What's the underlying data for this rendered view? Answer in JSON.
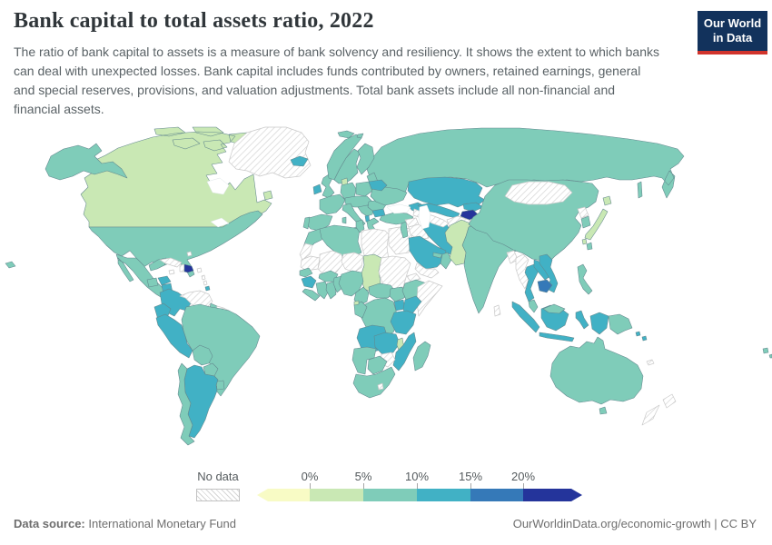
{
  "header": {
    "title": "Bank capital to total assets ratio, 2022",
    "subtitle": "The ratio of bank capital to assets is a measure of bank solvency and resiliency. It shows the extent to which banks can deal with unexpected losses. Bank capital includes funds contributed by owners, retained earnings, general and special reserves, provisions, and valuation adjustments. Total bank assets include all non-financial and financial assets.",
    "logo": {
      "line1": "Our World",
      "line2": "in Data"
    }
  },
  "colors": {
    "title_text": "#30363a",
    "subtitle_text": "#5a6266",
    "legend_text": "#555b5e",
    "footer_text": "#6e6e6e",
    "logo_bg": "#12325c",
    "logo_red": "#d1342c",
    "country_stroke": "#62878d",
    "nodata_stroke": "#c9c9c9"
  },
  "legend": {
    "no_data_label": "No data",
    "tick_labels": [
      "0%",
      "5%",
      "10%",
      "15%",
      "20%"
    ],
    "bands": [
      {
        "label": "<0%",
        "color": "#f8fbc5"
      },
      {
        "label": "0-5%",
        "color": "#c9e8b4"
      },
      {
        "label": "5-10%",
        "color": "#7fccb9"
      },
      {
        "label": "10-15%",
        "color": "#41b1c5"
      },
      {
        "label": "15-20%",
        "color": "#3579b8"
      },
      {
        "label": "20%+",
        "color": "#24349b"
      }
    ]
  },
  "footer": {
    "source_label": "Data source:",
    "source_text": " International Monetary Fund",
    "right_text": "OurWorldinData.org/economic-growth | CC BY"
  },
  "chart_data": {
    "type": "choropleth",
    "title": "Bank capital to total assets ratio",
    "year": "2022",
    "unit": "%",
    "band_colors": {
      "no-data": "hatch",
      "0-5": "#c9e8b4",
      "5-10": "#7fccb9",
      "10-15": "#41b1c5",
      "15-20": "#3579b8",
      "20+": "#24349b"
    },
    "countries": [
      {
        "id": "russia",
        "name": "Russia",
        "band": "5-10"
      },
      {
        "id": "canada",
        "name": "Canada",
        "band": "0-5"
      },
      {
        "id": "usa",
        "name": "United States",
        "band": "5-10"
      },
      {
        "id": "greenland",
        "name": "Greenland",
        "band": "no-data"
      },
      {
        "id": "mexico",
        "name": "Mexico",
        "band": "5-10"
      },
      {
        "id": "guatemala",
        "name": "Guatemala",
        "band": "5-10"
      },
      {
        "id": "honduras",
        "name": "Honduras",
        "band": "10-15"
      },
      {
        "id": "nicaragua",
        "name": "Nicaragua",
        "band": "10-15"
      },
      {
        "id": "costa-rica",
        "name": "Costa Rica",
        "band": "5-10"
      },
      {
        "id": "panama",
        "name": "Panama",
        "band": "5-10"
      },
      {
        "id": "cuba",
        "name": "Cuba",
        "band": "no-data"
      },
      {
        "id": "jamaica",
        "name": "Jamaica",
        "band": "no-data"
      },
      {
        "id": "haiti",
        "name": "Haiti",
        "band": "no-data"
      },
      {
        "id": "dominican-republic",
        "name": "Dominican Republic",
        "band": "20+"
      },
      {
        "id": "bahamas",
        "name": "Bahamas",
        "band": "no-data"
      },
      {
        "id": "lesser-antilles",
        "name": "Lesser Antilles",
        "band": "no-data"
      },
      {
        "id": "trinidad-and-tobago",
        "name": "Trinidad and Tobago",
        "band": "10-15"
      },
      {
        "id": "colombia",
        "name": "Colombia",
        "band": "10-15"
      },
      {
        "id": "venezuela",
        "name": "Venezuela",
        "band": "no-data"
      },
      {
        "id": "guyana",
        "name": "Guyana",
        "band": "5-10"
      },
      {
        "id": "suriname",
        "name": "Suriname",
        "band": "no-data"
      },
      {
        "id": "french-guiana",
        "name": "French Guiana",
        "band": "no-data"
      },
      {
        "id": "ecuador",
        "name": "Ecuador",
        "band": "10-15"
      },
      {
        "id": "peru",
        "name": "Peru",
        "band": "10-15"
      },
      {
        "id": "brazil",
        "name": "Brazil",
        "band": "5-10"
      },
      {
        "id": "bolivia",
        "name": "Bolivia",
        "band": "5-10"
      },
      {
        "id": "paraguay",
        "name": "Paraguay",
        "band": "5-10"
      },
      {
        "id": "uruguay",
        "name": "Uruguay",
        "band": "5-10"
      },
      {
        "id": "argentina",
        "name": "Argentina",
        "band": "10-15"
      },
      {
        "id": "chile",
        "name": "Chile",
        "band": "5-10"
      },
      {
        "id": "iceland",
        "name": "Iceland",
        "band": "10-15"
      },
      {
        "id": "ireland",
        "name": "Ireland",
        "band": "10-15"
      },
      {
        "id": "united-kingdom",
        "name": "United Kingdom",
        "band": "5-10"
      },
      {
        "id": "norway",
        "name": "Norway",
        "band": "5-10"
      },
      {
        "id": "sweden",
        "name": "Sweden",
        "band": "5-10"
      },
      {
        "id": "finland",
        "name": "Finland",
        "band": "5-10"
      },
      {
        "id": "denmark",
        "name": "Denmark",
        "band": "0-5"
      },
      {
        "id": "baltics",
        "name": "Baltic states",
        "band": "5-10"
      },
      {
        "id": "france",
        "name": "France",
        "band": "5-10"
      },
      {
        "id": "spain",
        "name": "Spain",
        "band": "5-10"
      },
      {
        "id": "portugal",
        "name": "Portugal",
        "band": "5-10"
      },
      {
        "id": "germany",
        "name": "Germany",
        "band": "5-10"
      },
      {
        "id": "central-europe",
        "name": "Central Europe",
        "band": "5-10"
      },
      {
        "id": "poland",
        "name": "Poland",
        "band": "5-10"
      },
      {
        "id": "italy",
        "name": "Italy",
        "band": "5-10"
      },
      {
        "id": "balkans",
        "name": "Western Balkans",
        "band": "5-10"
      },
      {
        "id": "albania",
        "name": "Albania",
        "band": "10-15"
      },
      {
        "id": "greece",
        "name": "Greece",
        "band": "5-10"
      },
      {
        "id": "bulgaria",
        "name": "Bulgaria",
        "band": "10-15"
      },
      {
        "id": "romania",
        "name": "Romania",
        "band": "5-10"
      },
      {
        "id": "ukraine",
        "name": "Ukraine",
        "band": "5-10"
      },
      {
        "id": "belarus",
        "name": "Belarus",
        "band": "10-15"
      },
      {
        "id": "turkey",
        "name": "Turkey",
        "band": "5-10"
      },
      {
        "id": "caucasus",
        "name": "Caucasus",
        "band": "10-15"
      },
      {
        "id": "svalbard",
        "name": "Svalbard",
        "band": "5-10"
      },
      {
        "id": "morocco",
        "name": "Morocco",
        "band": "5-10"
      },
      {
        "id": "western-sahara",
        "name": "Western Sahara",
        "band": "no-data"
      },
      {
        "id": "algeria",
        "name": "Algeria",
        "band": "5-10"
      },
      {
        "id": "tunisia",
        "name": "Tunisia",
        "band": "5-10"
      },
      {
        "id": "libya",
        "name": "Libya",
        "band": "no-data"
      },
      {
        "id": "egypt",
        "name": "Egypt",
        "band": "no-data"
      },
      {
        "id": "mauritania",
        "name": "Mauritania",
        "band": "no-data"
      },
      {
        "id": "mali",
        "name": "Mali",
        "band": "no-data"
      },
      {
        "id": "niger",
        "name": "Niger",
        "band": "no-data"
      },
      {
        "id": "chad",
        "name": "Chad",
        "band": "0-5"
      },
      {
        "id": "sudan",
        "name": "Sudan",
        "band": "no-data"
      },
      {
        "id": "eritrea",
        "name": "Eritrea",
        "band": "no-data"
      },
      {
        "id": "senegal",
        "name": "Senegal",
        "band": "5-10"
      },
      {
        "id": "guinea",
        "name": "Guinea",
        "band": "10-15"
      },
      {
        "id": "sierra-leone-liberia",
        "name": "Sierra Leone & Liberia",
        "band": "5-10"
      },
      {
        "id": "ivory-coast",
        "name": "Cote d'Ivoire",
        "band": "5-10"
      },
      {
        "id": "ghana",
        "name": "Ghana",
        "band": "5-10"
      },
      {
        "id": "burkina-faso",
        "name": "Burkina Faso",
        "band": "5-10"
      },
      {
        "id": "togo-benin",
        "name": "Togo & Benin",
        "band": "5-10"
      },
      {
        "id": "nigeria",
        "name": "Nigeria",
        "band": "5-10"
      },
      {
        "id": "cameroon",
        "name": "Cameroon",
        "band": "5-10"
      },
      {
        "id": "central-african-republic",
        "name": "Central African Republic",
        "band": "5-10"
      },
      {
        "id": "south-sudan",
        "name": "South Sudan",
        "band": "5-10"
      },
      {
        "id": "ethiopia",
        "name": "Ethiopia",
        "band": "5-10"
      },
      {
        "id": "somalia",
        "name": "Somalia",
        "band": "no-data"
      },
      {
        "id": "uganda",
        "name": "Uganda",
        "band": "10-15"
      },
      {
        "id": "kenya",
        "name": "Kenya",
        "band": "10-15"
      },
      {
        "id": "dr-congo",
        "name": "Democratic Republic of Congo",
        "band": "5-10"
      },
      {
        "id": "congo-gabon",
        "name": "Congo & Gabon",
        "band": "5-10"
      },
      {
        "id": "equatorial-guinea",
        "name": "Equatorial Guinea",
        "band": "0-5"
      },
      {
        "id": "angola",
        "name": "Angola",
        "band": "10-15"
      },
      {
        "id": "zambia",
        "name": "Zambia",
        "band": "10-15"
      },
      {
        "id": "tanzania",
        "name": "Tanzania",
        "band": "10-15"
      },
      {
        "id": "malawi",
        "name": "Malawi",
        "band": "0-5"
      },
      {
        "id": "mozambique",
        "name": "Mozambique",
        "band": "10-15"
      },
      {
        "id": "zimbabwe",
        "name": "Zimbabwe",
        "band": "no-data"
      },
      {
        "id": "namibia",
        "name": "Namibia",
        "band": "5-10"
      },
      {
        "id": "botswana",
        "name": "Botswana",
        "band": "5-10"
      },
      {
        "id": "south-africa",
        "name": "South Africa",
        "band": "5-10"
      },
      {
        "id": "lesotho",
        "name": "Lesotho",
        "band": "no-data"
      },
      {
        "id": "madagascar",
        "name": "Madagascar",
        "band": "5-10"
      },
      {
        "id": "levant",
        "name": "Israel & Jordan",
        "band": "5-10"
      },
      {
        "id": "syria",
        "name": "Syria",
        "band": "no-data"
      },
      {
        "id": "iraq",
        "name": "Iraq",
        "band": "no-data"
      },
      {
        "id": "iran",
        "name": "Iran",
        "band": "10-15"
      },
      {
        "id": "saudi-arabia",
        "name": "Saudi Arabia",
        "band": "10-15"
      },
      {
        "id": "yemen",
        "name": "Yemen",
        "band": "no-data"
      },
      {
        "id": "oman",
        "name": "Oman",
        "band": "5-10"
      },
      {
        "id": "uae-qatar",
        "name": "UAE & Qatar",
        "band": "5-10"
      },
      {
        "id": "kazakhstan",
        "name": "Kazakhstan",
        "band": "10-15"
      },
      {
        "id": "uzbekistan",
        "name": "Uzbekistan",
        "band": "10-15"
      },
      {
        "id": "turkmenistan",
        "name": "Turkmenistan",
        "band": "no-data"
      },
      {
        "id": "kyrgyzstan",
        "name": "Kyrgyzstan",
        "band": "10-15"
      },
      {
        "id": "tajikistan",
        "name": "Tajikistan",
        "band": "20+"
      },
      {
        "id": "india",
        "name": "India",
        "band": "5-10"
      },
      {
        "id": "afghanistan",
        "name": "Afghanistan",
        "band": "no-data"
      },
      {
        "id": "pakistan",
        "name": "Pakistan",
        "band": "0-5"
      },
      {
        "id": "sri-lanka",
        "name": "Sri Lanka",
        "band": "no-data"
      },
      {
        "id": "bangladesh",
        "name": "Bangladesh",
        "band": "no-data"
      },
      {
        "id": "china",
        "name": "China",
        "band": "5-10"
      },
      {
        "id": "mongolia",
        "name": "Mongolia",
        "band": "no-data"
      },
      {
        "id": "north-korea",
        "name": "North Korea",
        "band": "no-data"
      },
      {
        "id": "south-korea",
        "name": "South Korea",
        "band": "5-10"
      },
      {
        "id": "japan",
        "name": "Japan",
        "band": "0-5"
      },
      {
        "id": "taiwan",
        "name": "Taiwan",
        "band": "5-10"
      },
      {
        "id": "myanmar",
        "name": "Myanmar",
        "band": "no-data"
      },
      {
        "id": "thailand",
        "name": "Thailand",
        "band": "10-15"
      },
      {
        "id": "laos",
        "name": "Laos",
        "band": "10-15"
      },
      {
        "id": "vietnam",
        "name": "Vietnam",
        "band": "10-15"
      },
      {
        "id": "cambodia",
        "name": "Cambodia",
        "band": "15-20"
      },
      {
        "id": "indonesia",
        "name": "Indonesia",
        "band": "10-15"
      },
      {
        "id": "malaysia",
        "name": "Malaysia",
        "band": "5-10"
      },
      {
        "id": "philippines",
        "name": "Philippines",
        "band": "5-10"
      },
      {
        "id": "papua-new-guinea",
        "name": "Papua New Guinea",
        "band": "5-10"
      },
      {
        "id": "solomon-islands",
        "name": "Solomon Islands",
        "band": "10-15"
      },
      {
        "id": "new-caledonia",
        "name": "New Caledonia",
        "band": "no-data"
      },
      {
        "id": "fiji",
        "name": "Fiji",
        "band": "5-10"
      },
      {
        "id": "australia",
        "name": "Australia",
        "band": "5-10"
      },
      {
        "id": "new-zealand",
        "name": "New Zealand",
        "band": "no-data"
      }
    ]
  }
}
